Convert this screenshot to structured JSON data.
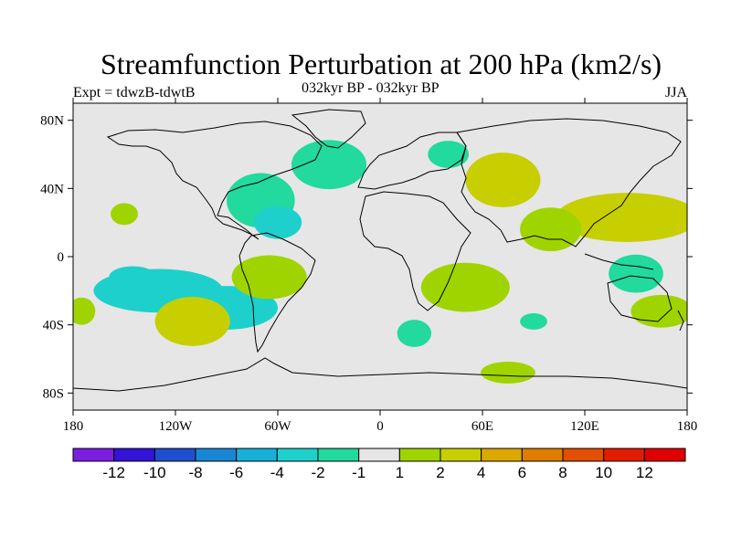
{
  "header": {
    "title": "Streamfunction Perturbation at 200 hPa (km2/s)",
    "left": "Expt = tdwzB-tdwtB",
    "center": "032kyr BP - 032kyr BP",
    "right": "JJA"
  },
  "axes": {
    "x_labels": [
      "180",
      "120W",
      "60W",
      "0",
      "60E",
      "120E",
      "180"
    ],
    "y_labels": [
      "80N",
      "40N",
      "0",
      "40S",
      "80S"
    ]
  },
  "colorbar": {
    "labels": [
      "-12",
      "-10",
      "-8",
      "-6",
      "-4",
      "-2",
      "-1",
      "1",
      "2",
      "4",
      "6",
      "8",
      "10",
      "12"
    ],
    "colors": [
      "#7a1fe0",
      "#3314d8",
      "#1f4ed0",
      "#1a86d6",
      "#17b0d8",
      "#1ed0cc",
      "#22d99e",
      "#e6e6e6",
      "#9fd400",
      "#c7cf00",
      "#dba700",
      "#e07c00",
      "#e24f00",
      "#e21c00",
      "#e00000"
    ]
  },
  "chart_data": {
    "type": "map-contour",
    "title": "Streamfunction Perturbation at 200 hPa (km2/s)",
    "subtitle": "032kyr BP - 032kyr BP",
    "season": "JJA",
    "experiment": "Expt = tdwzB-tdwtB",
    "x_range": [
      -180,
      180
    ],
    "y_range": [
      -90,
      90
    ],
    "color_levels": [
      -12,
      -10,
      -8,
      -6,
      -4,
      -2,
      -1,
      1,
      2,
      4,
      6,
      8,
      10,
      12
    ],
    "regions": [
      {
        "lon": -30,
        "lat": 54,
        "value": -1.5
      },
      {
        "lon": -70,
        "lat": 33,
        "value": -1.5
      },
      {
        "lon": -60,
        "lat": 20,
        "value": -2.5
      },
      {
        "lon": -150,
        "lat": 25,
        "value": 1.5
      },
      {
        "lon": -130,
        "lat": -20,
        "value": -2.5
      },
      {
        "lon": -145,
        "lat": -12,
        "value": -3.5
      },
      {
        "lon": -90,
        "lat": -30,
        "value": -3.5
      },
      {
        "lon": -65,
        "lat": -12,
        "value": 1.5
      },
      {
        "lon": -110,
        "lat": -38,
        "value": 2.5
      },
      {
        "lon": -175,
        "lat": -32,
        "value": 1.5
      },
      {
        "lon": 50,
        "lat": -18,
        "value": 1.5
      },
      {
        "lon": 72,
        "lat": 45,
        "value": 2.5
      },
      {
        "lon": 145,
        "lat": 23,
        "value": 2.5
      },
      {
        "lon": 100,
        "lat": 16,
        "value": 1.5
      },
      {
        "lon": 150,
        "lat": -10,
        "value": -1.5
      },
      {
        "lon": 165,
        "lat": -32,
        "value": 1.5
      },
      {
        "lon": 90,
        "lat": -38,
        "value": -1.5
      },
      {
        "lon": 20,
        "lat": -45,
        "value": -1.5
      },
      {
        "lon": 75,
        "lat": -68,
        "value": 1.5
      },
      {
        "lon": 40,
        "lat": 60,
        "value": -1.5
      }
    ]
  }
}
